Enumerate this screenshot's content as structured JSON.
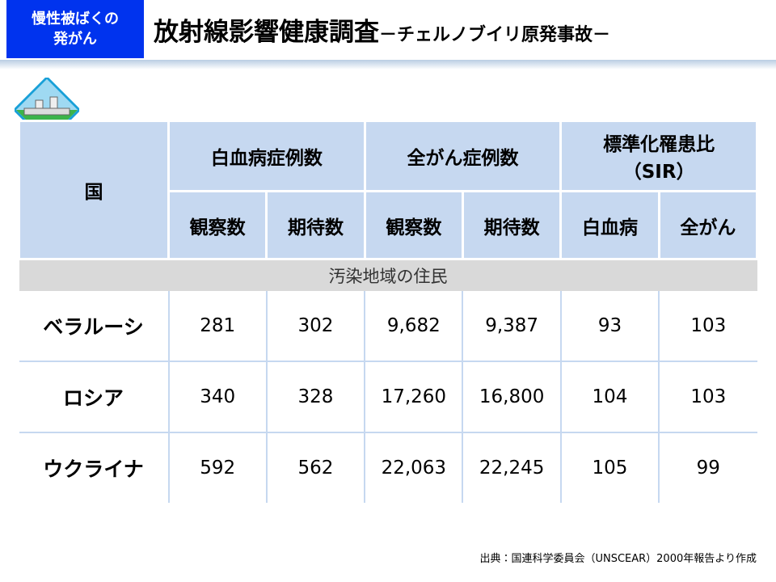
{
  "header": {
    "tag": [
      "慢性被ばくの",
      "発がん"
    ],
    "title": "放射線影響健康調査",
    "subtitle": "－チェルノブイリ原発事故－"
  },
  "table": {
    "corner": "国",
    "groups": [
      "白血病症例数",
      "全がん症例数",
      [
        "標準化罹患比",
        "（SIR）"
      ]
    ],
    "subheaders": [
      "観察数",
      "期待数",
      "観察数",
      "期待数",
      "白血病",
      "全がん"
    ],
    "section": "汚染地域の住民",
    "rows": [
      [
        "ベラルーシ",
        "281",
        "302",
        "9,682",
        "9,387",
        "93",
        "103"
      ],
      [
        "ロシア",
        "340",
        "328",
        "17,260",
        "16,800",
        "104",
        "103"
      ],
      [
        "ウクライナ",
        "592",
        "562",
        "22,063",
        "22,245",
        "105",
        "99"
      ]
    ]
  },
  "footnote": "出典：国連科学委員会（UNSCEAR）2000年報告より作成"
}
